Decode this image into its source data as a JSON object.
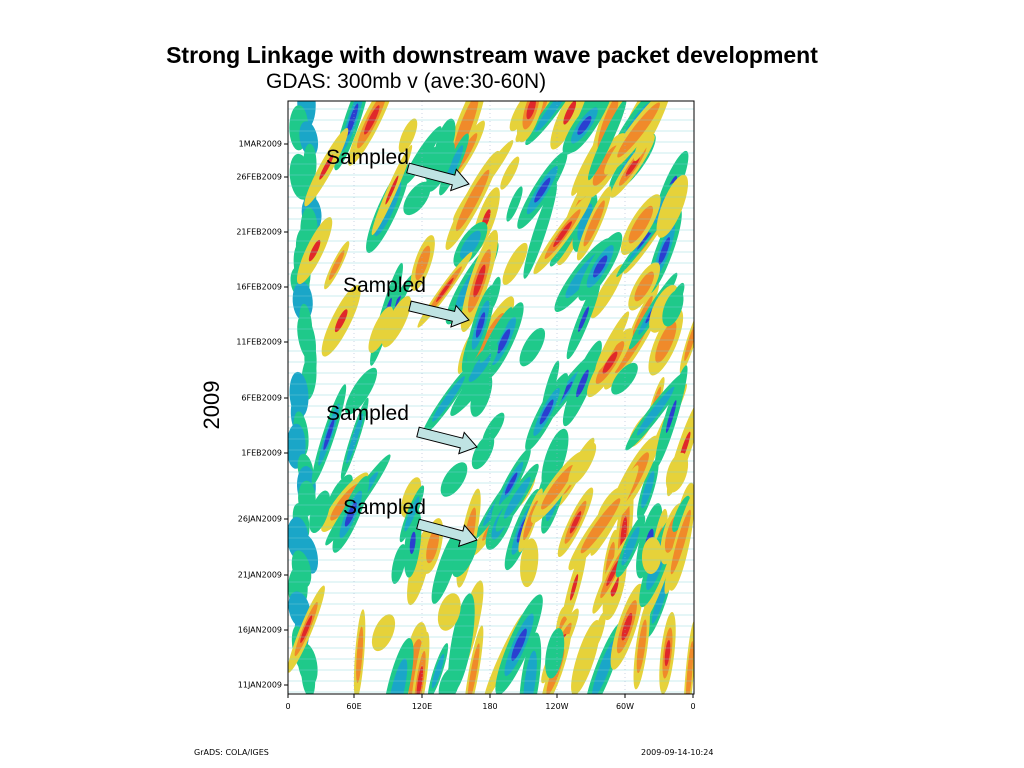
{
  "title": "Strong Linkage with downstream wave packet development",
  "subtitle": "GDAS: 300mb v (ave:30-60N)",
  "year_label": "2009",
  "y_ticks": [
    "1MAR2009",
    "26FEB2009",
    "21FEB2009",
    "16FEB2009",
    "11FEB2009",
    "6FEB2009",
    "1FEB2009",
    "26JAN2009",
    "21JAN2009",
    "16JAN2009",
    "11JAN2009"
  ],
  "x_ticks": [
    "0",
    "60E",
    "120E",
    "180",
    "120W",
    "60W",
    "0"
  ],
  "annotation_label": "Sampled",
  "annotations": [
    {
      "label": "Sampled"
    },
    {
      "label": "Sampled"
    },
    {
      "label": "Sampled"
    },
    {
      "label": "Sampled"
    }
  ],
  "footer_left": "GrADS: COLA/IGES",
  "footer_right": "2009-09-14-10:24",
  "colors": {
    "green": "#1fc98a",
    "teal": "#1aa6c8",
    "blue": "#2a3fd0",
    "yellow": "#e6d23a",
    "orange": "#f08a2a",
    "red": "#e0282a",
    "arrow_fill": "#bfe3e3"
  },
  "chart_data": {
    "type": "heatmap",
    "title": "GDAS: 300mb v (ave:30-60N)",
    "xlabel": "",
    "ylabel": "2009",
    "x_ticks": [
      "0",
      "60E",
      "120E",
      "180",
      "120W",
      "60W",
      "0"
    ],
    "y_ticks": [
      "11JAN2009",
      "16JAN2009",
      "21JAN2009",
      "26JAN2009",
      "1FEB2009",
      "6FEB2009",
      "11FEB2009",
      "16FEB2009",
      "21FEB2009",
      "26FEB2009",
      "1MAR2009"
    ],
    "y_range": [
      "9JAN2009",
      "3MAR2009"
    ],
    "x_range": [
      "0",
      "0"
    ]
  }
}
